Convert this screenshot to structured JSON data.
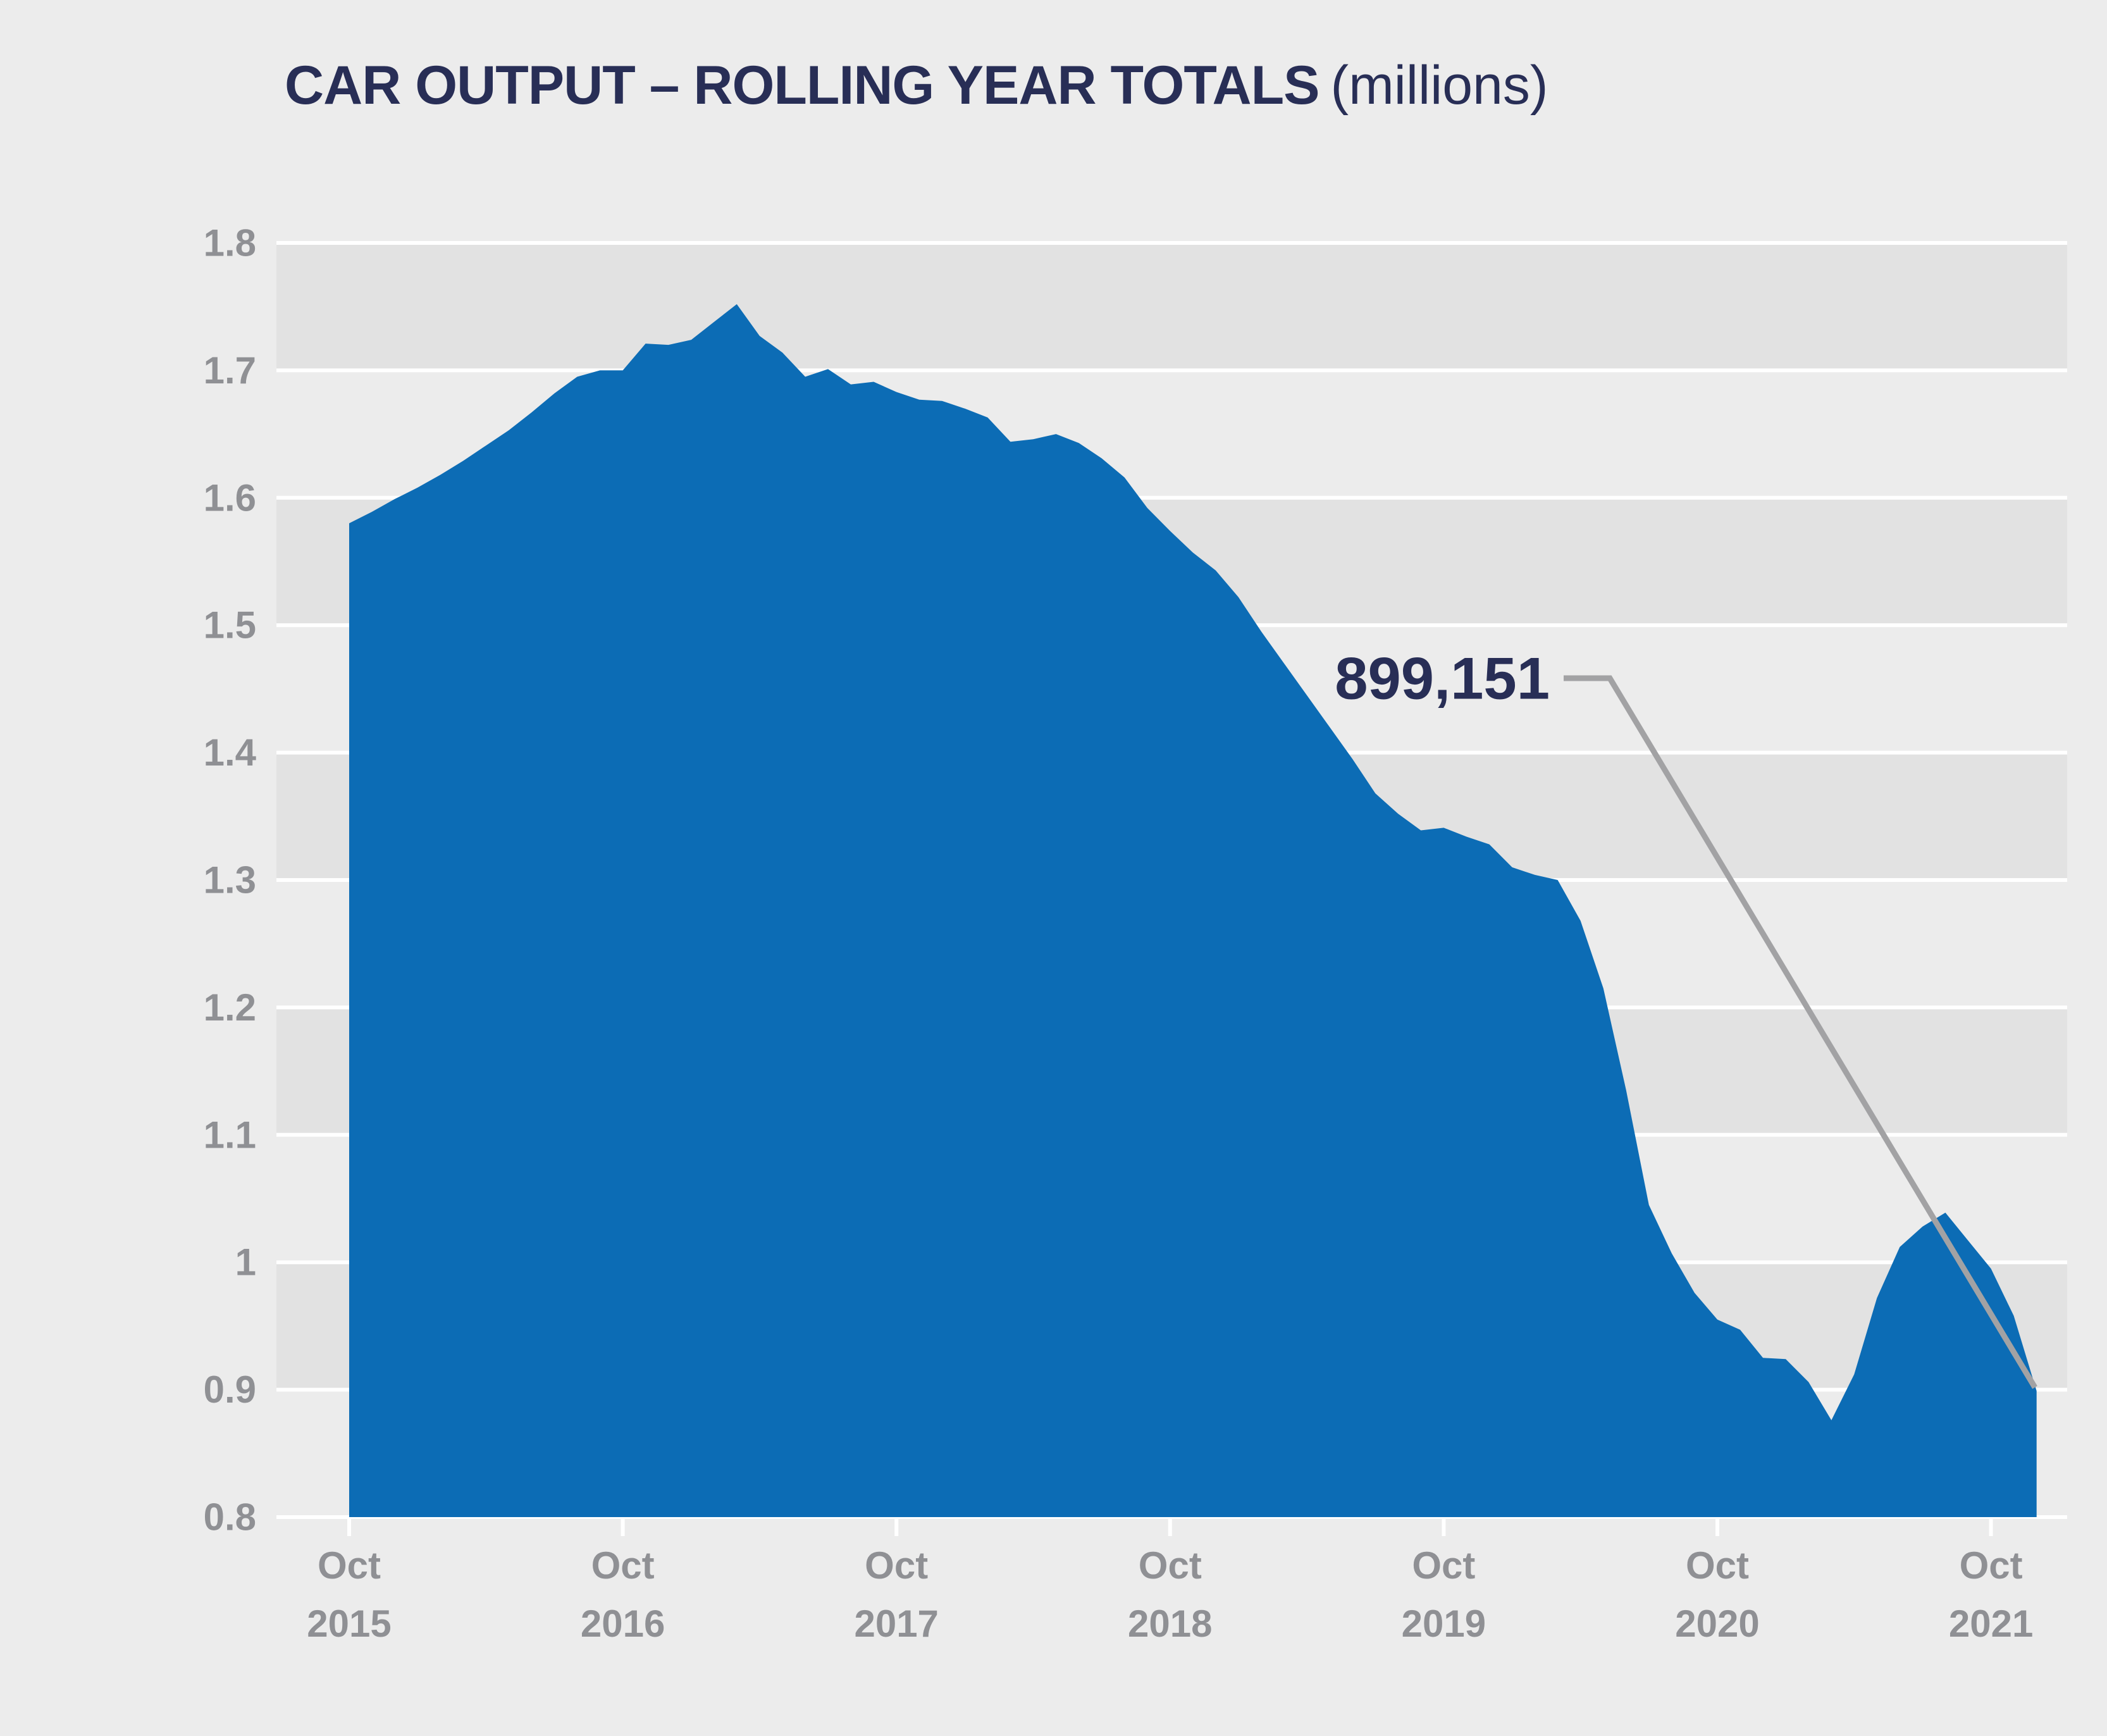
{
  "header": {
    "title_strong": "CAR OUTPUT – ROLLING YEAR TOTALS",
    "title_light": "(millions)"
  },
  "annotation": {
    "label": "899,151"
  },
  "colors": {
    "page_background": "#ececec",
    "band_shade": "#e2e2e2",
    "gridline": "#ffffff",
    "area_fill": "#0c6cb5",
    "title_text": "#282e56",
    "axis_text": "#8f9094",
    "callout_line": "#a2a2a4",
    "annotation_text": "#282e56"
  },
  "chart_data": {
    "type": "area",
    "title": "CAR OUTPUT – ROLLING YEAR TOTALS (millions)",
    "xlabel": "",
    "ylabel": "",
    "ylim": [
      0.8,
      1.8
    ],
    "y_ticks": [
      0.8,
      0.9,
      1.0,
      1.1,
      1.2,
      1.3,
      1.4,
      1.5,
      1.6,
      1.7,
      1.8
    ],
    "y_tick_labels": [
      "0.8",
      "0.9",
      "1",
      "1.1",
      "1.2",
      "1.3",
      "1.4",
      "1.5",
      "1.6",
      "1.7",
      "1.8"
    ],
    "shaded_bands": [
      [
        0.9,
        1.0
      ],
      [
        1.1,
        1.2
      ],
      [
        1.3,
        1.4
      ],
      [
        1.5,
        1.6
      ],
      [
        1.7,
        1.8
      ]
    ],
    "x_tick_labels": [
      {
        "month": "Oct",
        "year": "2015"
      },
      {
        "month": "Oct",
        "year": "2016"
      },
      {
        "month": "Oct",
        "year": "2017"
      },
      {
        "month": "Oct",
        "year": "2018"
      },
      {
        "month": "Oct",
        "year": "2019"
      },
      {
        "month": "Oct",
        "year": "2020"
      },
      {
        "month": "Oct",
        "year": "2021"
      }
    ],
    "x_tick_month_index": [
      0,
      12,
      24,
      36,
      48,
      60,
      72
    ],
    "grid": "horizontal white gridlines with alternating shaded bands",
    "legend": "none",
    "series": [
      {
        "name": "Car output rolling year total (millions)",
        "start_month": "Oct 2015",
        "end_month": "Dec 2021",
        "interval": "monthly",
        "values": [
          1.58,
          1.589,
          1.599,
          1.608,
          1.618,
          1.629,
          1.641,
          1.653,
          1.667,
          1.682,
          1.695,
          1.7,
          1.7,
          1.721,
          1.72,
          1.724,
          1.738,
          1.752,
          1.727,
          1.714,
          1.695,
          1.701,
          1.689,
          1.691,
          1.683,
          1.677,
          1.676,
          1.67,
          1.663,
          1.644,
          1.646,
          1.65,
          1.643,
          1.631,
          1.616,
          1.592,
          1.574,
          1.557,
          1.543,
          1.522,
          1.495,
          1.47,
          1.445,
          1.42,
          1.395,
          1.368,
          1.352,
          1.339,
          1.341,
          1.334,
          1.328,
          1.31,
          1.304,
          1.3,
          1.268,
          1.215,
          1.135,
          1.045,
          1.007,
          0.976,
          0.955,
          0.947,
          0.925,
          0.924,
          0.906,
          0.876,
          0.912,
          0.972,
          1.012,
          1.028,
          1.039,
          1.017,
          0.995,
          0.958,
          0.899
        ]
      }
    ],
    "annotation": {
      "text": "899,151",
      "points_to_month": "Dec 2021",
      "value_millions": 0.899151
    }
  }
}
